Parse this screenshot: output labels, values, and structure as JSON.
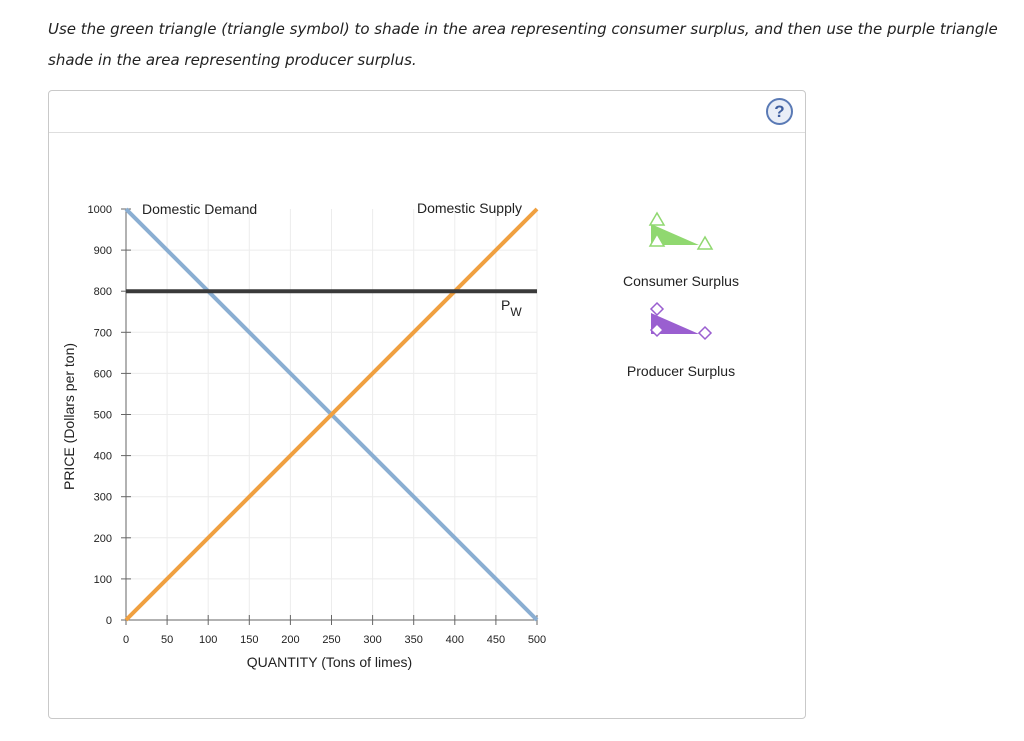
{
  "instructions": {
    "line1": "Use the green triangle (triangle symbol) to shade in the area representing consumer surplus, and then use the purple triangle",
    "line2": "shade in the area representing producer surplus."
  },
  "help": {
    "label": "?"
  },
  "colors": {
    "demand": "#8aaed2",
    "supply": "#f0a040",
    "world_price": "#3a3a3a",
    "consumer_surplus": "#90d870",
    "producer_surplus": "#9a5fd0",
    "grid": "#ececec"
  },
  "chart_data": {
    "type": "line",
    "xlabel": "QUANTITY (Tons of limes)",
    "ylabel": "PRICE (Dollars per ton)",
    "xlim": [
      0,
      500
    ],
    "ylim": [
      0,
      1000
    ],
    "x_ticks": [
      0,
      50,
      100,
      150,
      200,
      250,
      300,
      350,
      400,
      450,
      500
    ],
    "y_ticks": [
      0,
      100,
      200,
      300,
      400,
      500,
      600,
      700,
      800,
      900,
      1000
    ],
    "grid": true,
    "series": [
      {
        "name": "Domestic Demand",
        "x": [
          0,
          500
        ],
        "y": [
          1000,
          0
        ]
      },
      {
        "name": "Domestic Supply",
        "x": [
          0,
          500
        ],
        "y": [
          0,
          1000
        ]
      }
    ],
    "world_price": {
      "label_main": "P",
      "label_sub": "W",
      "value": 800
    }
  },
  "tools": [
    {
      "label": "Consumer Surplus",
      "icon": "green-triangle-icon"
    },
    {
      "label": "Producer Surplus",
      "icon": "purple-triangle-icon"
    }
  ]
}
